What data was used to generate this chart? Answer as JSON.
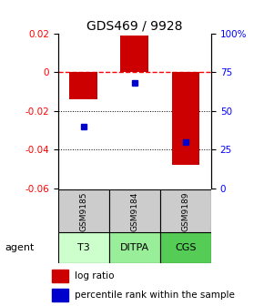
{
  "title": "GDS469 / 9928",
  "samples": [
    "T3",
    "DITPA",
    "CGS"
  ],
  "sample_ids": [
    "GSM9185",
    "GSM9184",
    "GSM9189"
  ],
  "log_ratios": [
    -0.014,
    0.019,
    -0.048
  ],
  "percentile_ranks": [
    40,
    68,
    30
  ],
  "ylim_left": [
    -0.06,
    0.02
  ],
  "ylim_right": [
    0,
    100
  ],
  "yticks_left": [
    0.02,
    0,
    -0.02,
    -0.04,
    -0.06
  ],
  "yticks_right": [
    100,
    75,
    50,
    25,
    0
  ],
  "bar_color": "#cc0000",
  "dot_color": "#0000cc",
  "agent_colors": [
    "#ccffcc",
    "#99ee99",
    "#55cc55"
  ],
  "sample_bg_color": "#cccccc",
  "legend_bar_label": "log ratio",
  "legend_dot_label": "percentile rank within the sample",
  "bar_width": 0.55,
  "title_fontsize": 10,
  "tick_fontsize": 7.5
}
